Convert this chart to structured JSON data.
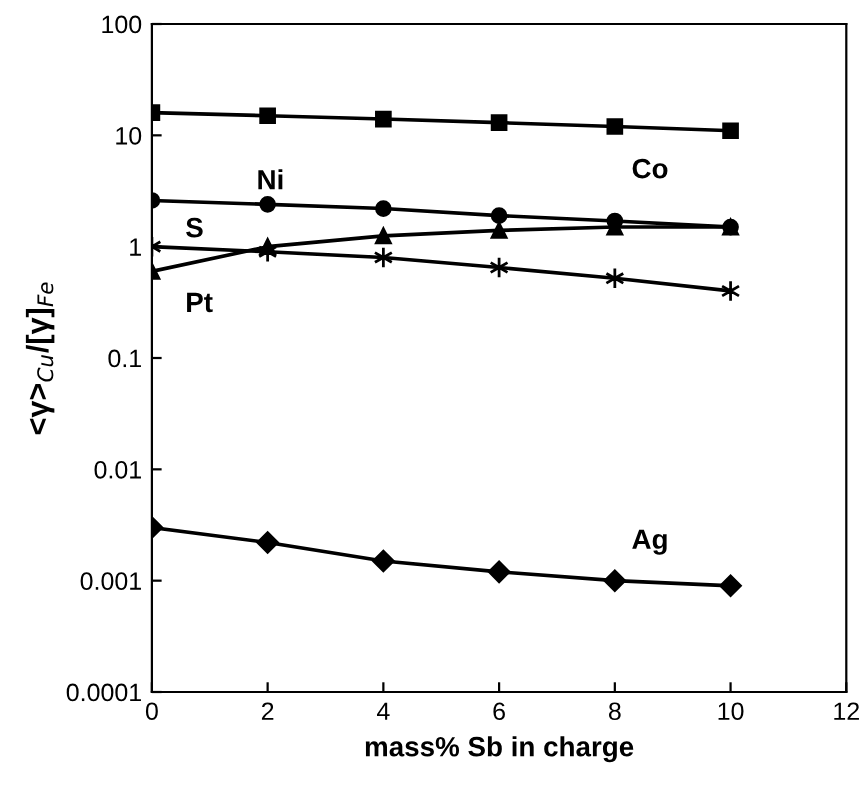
{
  "chart_data": {
    "type": "line",
    "xlabel": "mass% Sb in charge",
    "ylabel": "<γ>$_{Cu}$/[γ]$_{Fe}$",
    "log": true,
    "x": [
      0,
      2,
      4,
      6,
      8,
      10
    ],
    "series": [
      {
        "name": "Co",
        "color": "#000000",
        "marker": "square",
        "values": [
          16,
          15,
          14,
          13,
          12,
          11
        ]
      },
      {
        "name": "Ni",
        "color": "#000000",
        "marker": "circle",
        "values": [
          2.6,
          2.4,
          2.2,
          1.9,
          1.7,
          1.5
        ]
      },
      {
        "name": "S",
        "color": "#000000",
        "marker": "cross",
        "values": [
          1.0,
          0.9,
          0.8,
          0.65,
          0.52,
          0.4
        ]
      },
      {
        "name": "Pt",
        "color": "#000000",
        "marker": "triangle",
        "values": [
          0.6,
          1.0,
          1.25,
          1.4,
          1.5,
          1.5
        ]
      },
      {
        "name": "Ag",
        "color": "#000000",
        "marker": "diamond",
        "values": [
          0.003,
          0.0022,
          0.0015,
          0.0012,
          0.001,
          0.0009
        ]
      }
    ],
    "xlim": [
      0,
      12
    ],
    "xticks": [
      0,
      2,
      4,
      6,
      8,
      10,
      12
    ],
    "ylim": [
      0.0001,
      100
    ],
    "yticks": [
      0.0001,
      0.001,
      0.01,
      0.1,
      1,
      10,
      100
    ],
    "grid": false,
    "legend": false,
    "line_style": "solid"
  }
}
